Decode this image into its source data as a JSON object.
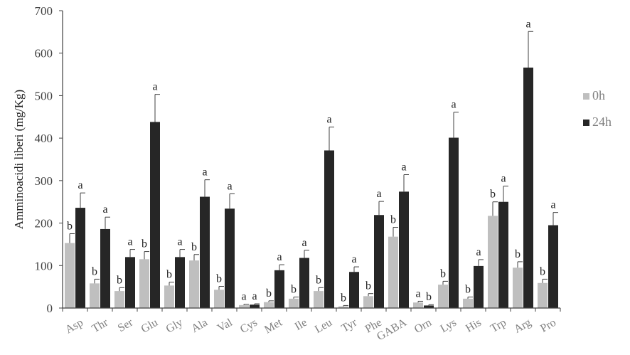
{
  "chart_data": {
    "type": "bar",
    "ylabel": "Amminoacidi liberi (mg/Kg)",
    "ylim": [
      0,
      700
    ],
    "yticks": [
      "0",
      "100",
      "200",
      "300",
      "400",
      "500",
      "600",
      "700"
    ],
    "categories": [
      "Asp",
      "Thr",
      "Ser",
      "Glu",
      "Gly",
      "Ala",
      "Val",
      "Cys",
      "Met",
      "Ile",
      "Leu",
      "Tyr",
      "Phe",
      "GABA",
      "Orn",
      "Lys",
      "His",
      "Trp",
      "Arg",
      "Pro"
    ],
    "series": [
      {
        "name": "0h",
        "color": "#bfbfbf",
        "values": [
          153,
          58,
          40,
          115,
          53,
          112,
          43,
          7,
          14,
          22,
          40,
          4,
          28,
          168,
          13,
          55,
          22,
          217,
          95,
          59
        ],
        "errors": [
          22,
          10,
          8,
          18,
          8,
          14,
          8,
          2,
          3,
          4,
          8,
          2,
          6,
          22,
          3,
          8,
          4,
          33,
          14,
          9
        ],
        "significance": [
          "b",
          "b",
          "b",
          "b",
          "b",
          "b",
          "b",
          "a",
          "b",
          "b",
          "b",
          "b",
          "b",
          "b",
          "a",
          "b",
          "b",
          "b",
          "b",
          "b"
        ]
      },
      {
        "name": "24h",
        "color": "#262626",
        "values": [
          236,
          186,
          120,
          438,
          120,
          262,
          234,
          8,
          89,
          118,
          371,
          85,
          219,
          274,
          6,
          401,
          99,
          250,
          566,
          195
        ],
        "errors": [
          35,
          28,
          18,
          65,
          18,
          40,
          35,
          2,
          13,
          18,
          55,
          12,
          32,
          40,
          2,
          60,
          15,
          37,
          85,
          30
        ],
        "significance": [
          "a",
          "a",
          "a",
          "a",
          "a",
          "a",
          "a",
          "a",
          "a",
          "a",
          "a",
          "a",
          "a",
          "a",
          "b",
          "a",
          "a",
          "a",
          "a",
          "a"
        ]
      }
    ],
    "legend_position": "right"
  }
}
